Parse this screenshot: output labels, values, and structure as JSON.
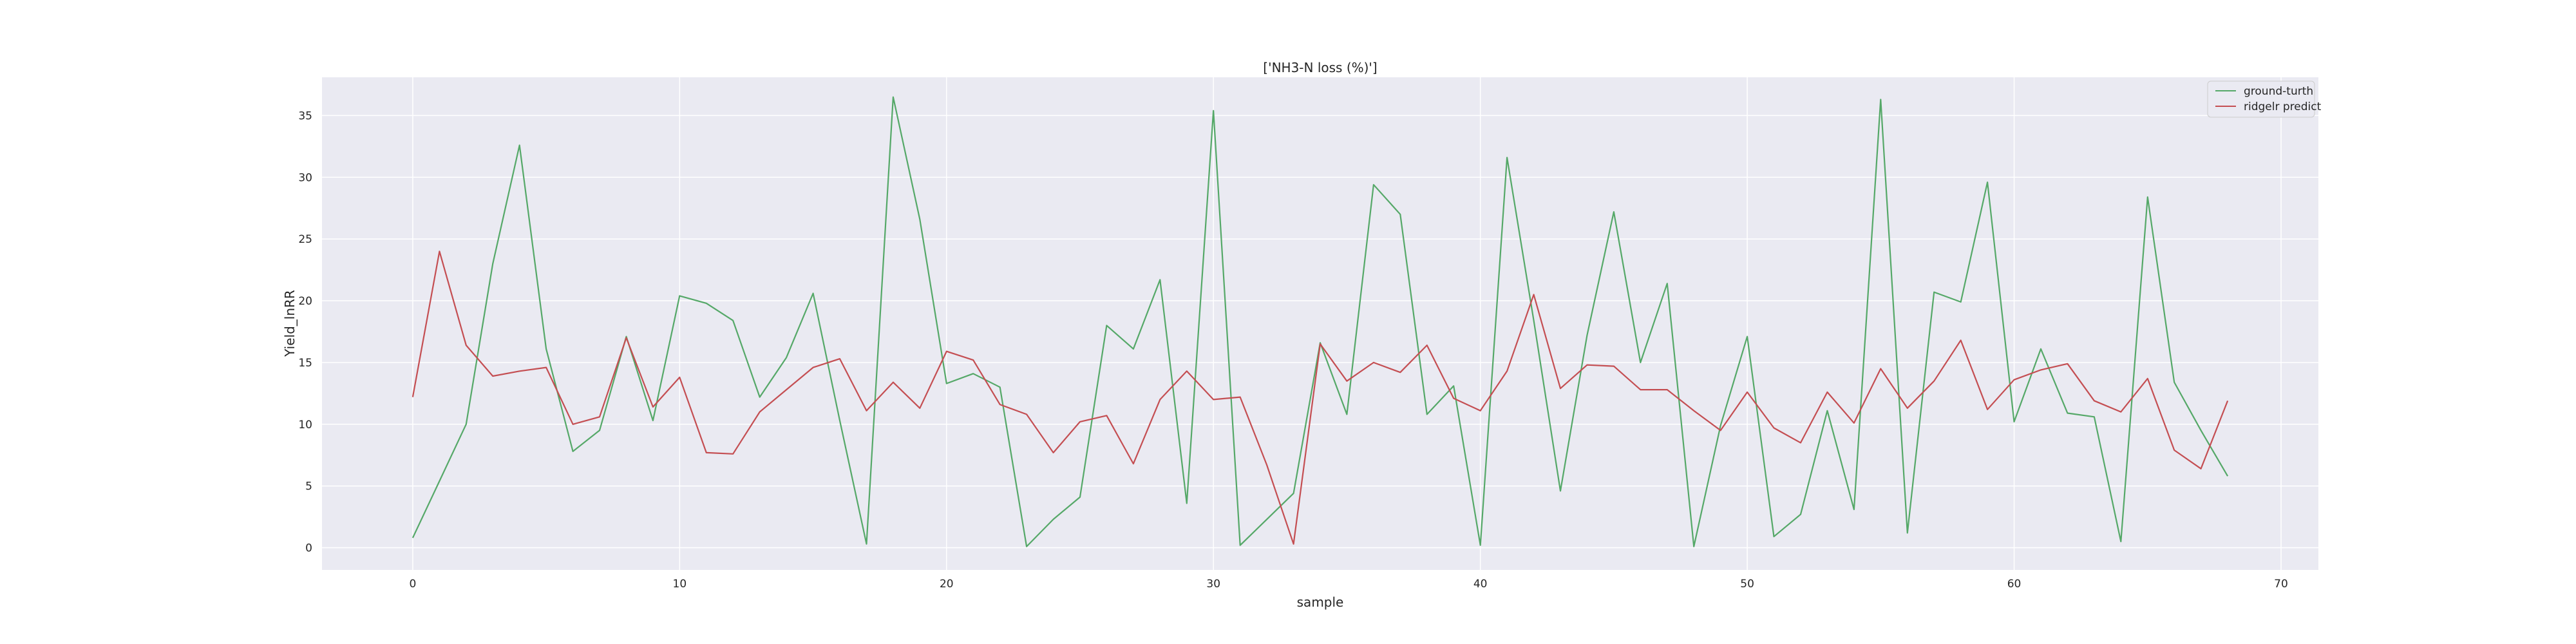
{
  "chart_data": {
    "type": "line",
    "title": "['NH3-N loss (%)']",
    "xlabel": "sample",
    "ylabel": "Yield_lnRR",
    "xlim": [
      -3.4,
      71.4
    ],
    "ylim": [
      -1.8,
      38.1
    ],
    "xticks": [
      0,
      10,
      20,
      30,
      40,
      50,
      60,
      70
    ],
    "yticks": [
      0,
      5,
      10,
      15,
      20,
      25,
      30,
      35
    ],
    "grid": true,
    "legend_position": "top-right",
    "x": [
      0,
      1,
      2,
      3,
      4,
      5,
      6,
      7,
      8,
      9,
      10,
      11,
      12,
      13,
      14,
      15,
      16,
      17,
      18,
      19,
      20,
      21,
      22,
      23,
      24,
      25,
      26,
      27,
      28,
      29,
      30,
      31,
      32,
      33,
      34,
      35,
      36,
      37,
      38,
      39,
      40,
      41,
      42,
      43,
      44,
      45,
      46,
      47,
      48,
      49,
      50,
      51,
      52,
      53,
      54,
      55,
      56,
      57,
      58,
      59,
      60,
      61,
      62,
      63,
      64,
      65,
      66,
      67,
      68
    ],
    "series": [
      {
        "name": "ground-turth",
        "color": "#55a868",
        "values": [
          0.8,
          5.4,
          10.0,
          23.0,
          32.6,
          16.1,
          7.8,
          9.5,
          17.1,
          10.3,
          20.4,
          19.8,
          18.4,
          12.2,
          15.4,
          20.6,
          10.3,
          0.3,
          36.5,
          26.6,
          13.3,
          14.1,
          13.0,
          0.1,
          2.3,
          4.1,
          18.0,
          16.1,
          21.7,
          3.6,
          35.4,
          0.2,
          2.3,
          4.4,
          16.6,
          10.8,
          29.4,
          27.0,
          10.8,
          13.1,
          0.2,
          31.6,
          18.4,
          4.6,
          17.2,
          27.2,
          15.0,
          21.4,
          0.1,
          9.9,
          17.1,
          0.9,
          2.7,
          11.1,
          3.1,
          36.3,
          1.2,
          20.7,
          19.9,
          29.6,
          10.2,
          16.1,
          10.9,
          10.6,
          0.5,
          28.4,
          13.4,
          9.5,
          5.8
        ]
      },
      {
        "name": "ridgelr predict",
        "color": "#c44e52",
        "values": [
          12.2,
          24.0,
          16.4,
          13.9,
          14.3,
          14.6,
          10.0,
          10.6,
          17.0,
          11.4,
          13.8,
          7.7,
          7.6,
          11.0,
          12.8,
          14.6,
          15.3,
          11.1,
          13.4,
          11.3,
          15.9,
          15.2,
          11.6,
          10.8,
          7.7,
          10.2,
          10.7,
          6.8,
          12.0,
          14.3,
          12.0,
          12.2,
          6.7,
          0.3,
          16.5,
          13.5,
          15.0,
          14.2,
          16.4,
          12.1,
          11.1,
          14.3,
          20.5,
          12.9,
          14.8,
          14.7,
          12.8,
          12.8,
          11.1,
          9.5,
          12.6,
          9.7,
          8.5,
          12.6,
          10.1,
          14.5,
          11.3,
          13.5,
          16.8,
          11.2,
          13.6,
          14.4,
          14.9,
          11.9,
          11.0,
          13.7,
          7.9,
          6.4,
          11.9
        ]
      }
    ]
  }
}
